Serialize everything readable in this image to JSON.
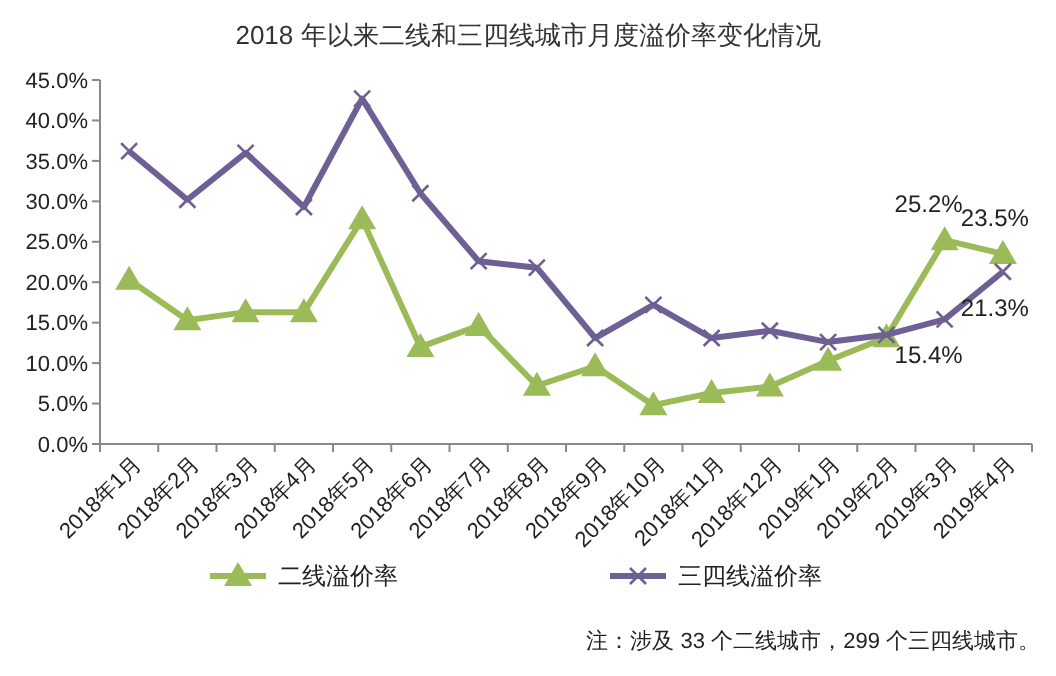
{
  "chart_data": {
    "type": "line",
    "title": "2018 年以来二线和三四线城市月度溢价率变化情况",
    "categories": [
      "2018年1月",
      "2018年2月",
      "2018年3月",
      "2018年4月",
      "2018年5月",
      "2018年6月",
      "2018年7月",
      "2018年8月",
      "2018年9月",
      "2018年10月",
      "2018年11月",
      "2018年12月",
      "2019年1月",
      "2019年2月",
      "2019年3月",
      "2019年4月"
    ],
    "series": [
      {
        "name": "二线溢价率",
        "color": "#9bbb59",
        "marker": "triangle",
        "values": [
          20.3,
          15.3,
          16.3,
          16.3,
          27.8,
          12.0,
          14.6,
          7.2,
          9.6,
          4.8,
          6.3,
          7.1,
          10.3,
          13.2,
          25.2,
          23.5
        ],
        "value_labels": [
          null,
          null,
          null,
          null,
          null,
          null,
          null,
          null,
          null,
          null,
          null,
          null,
          null,
          null,
          "25.2%",
          "23.5%"
        ]
      },
      {
        "name": "三四线溢价率",
        "color": "#6e5f94",
        "marker": "cross",
        "values": [
          36.2,
          30.2,
          36.0,
          29.3,
          42.7,
          31.0,
          22.6,
          21.8,
          13.1,
          17.2,
          13.1,
          14.0,
          12.6,
          13.5,
          15.4,
          21.3
        ],
        "value_labels": [
          null,
          null,
          null,
          null,
          null,
          null,
          null,
          null,
          null,
          null,
          null,
          null,
          null,
          null,
          "15.4%",
          "21.3%"
        ]
      }
    ],
    "ylim": [
      0,
      45
    ],
    "yticks": [
      {
        "value": 0,
        "label": "0.0%"
      },
      {
        "value": 5,
        "label": "5.0%"
      },
      {
        "value": 10,
        "label": "10.0%"
      },
      {
        "value": 15,
        "label": "15.0%"
      },
      {
        "value": 20,
        "label": "20.0%"
      },
      {
        "value": 25,
        "label": "25.0%"
      },
      {
        "value": 30,
        "label": "30.0%"
      },
      {
        "value": 35,
        "label": "35.0%"
      },
      {
        "value": 40,
        "label": "40.0%"
      },
      {
        "value": 45,
        "label": "45.0%"
      }
    ],
    "grid": false,
    "legend": "bottom",
    "annotations": [
      "注：涉及 33 个二线城市，299 个三四线城市。"
    ]
  }
}
